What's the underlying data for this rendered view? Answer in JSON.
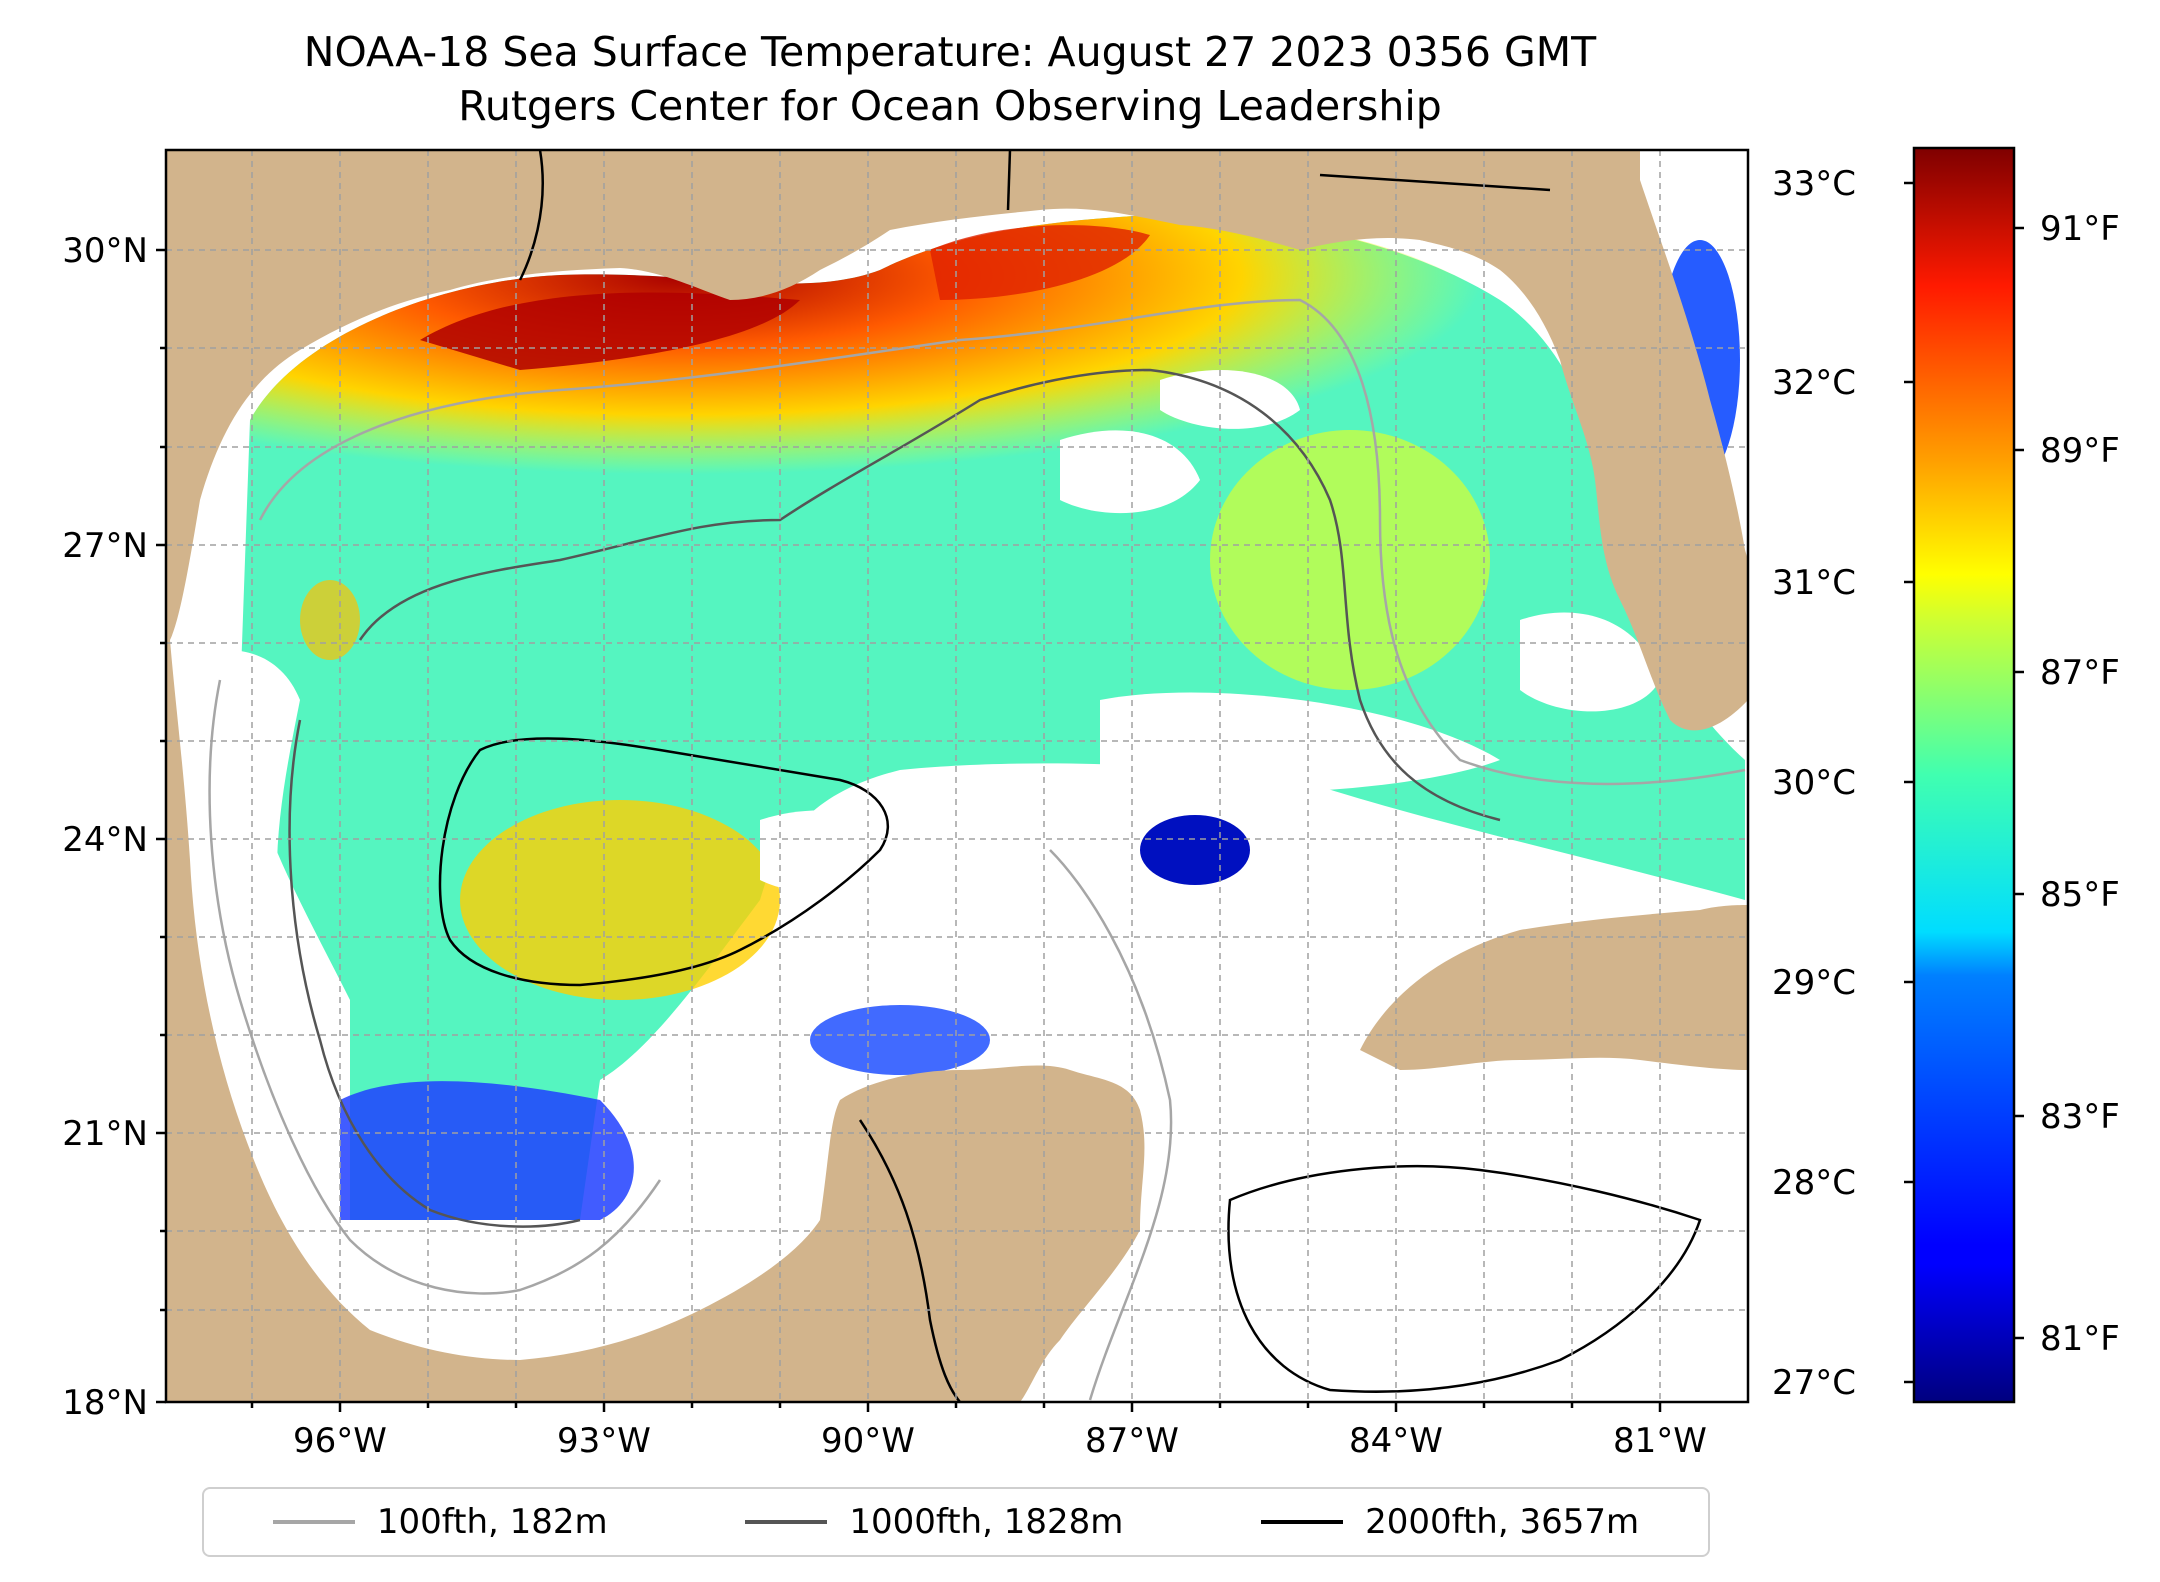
{
  "title": {
    "line1": "NOAA-18 Sea Surface Temperature: August 27 2023 0356 GMT",
    "line2": "Rutgers Center for Ocean Observing Leadership"
  },
  "map": {
    "lat_labels": [
      "30°N",
      "27°N",
      "24°N",
      "21°N",
      "18°N"
    ],
    "lon_labels": [
      "96°W",
      "93°W",
      "90°W",
      "87°W",
      "84°W",
      "81°W"
    ],
    "land_color": "#d2b48c",
    "no_data_color": "#ffffff"
  },
  "colorbar": {
    "colormap": "jet",
    "celsius_labels": [
      "33°C",
      "32°C",
      "31°C",
      "30°C",
      "29°C",
      "28°C",
      "27°C"
    ],
    "fahrenheit_labels": [
      "91°F",
      "89°F",
      "87°F",
      "85°F",
      "83°F",
      "81°F"
    ]
  },
  "legend": {
    "items": [
      {
        "label": "100fth, 182m",
        "color": "#a6a6a6"
      },
      {
        "label": "1000fth, 1828m",
        "color": "#555555"
      },
      {
        "label": "2000fth, 3657m",
        "color": "#000000"
      }
    ]
  }
}
